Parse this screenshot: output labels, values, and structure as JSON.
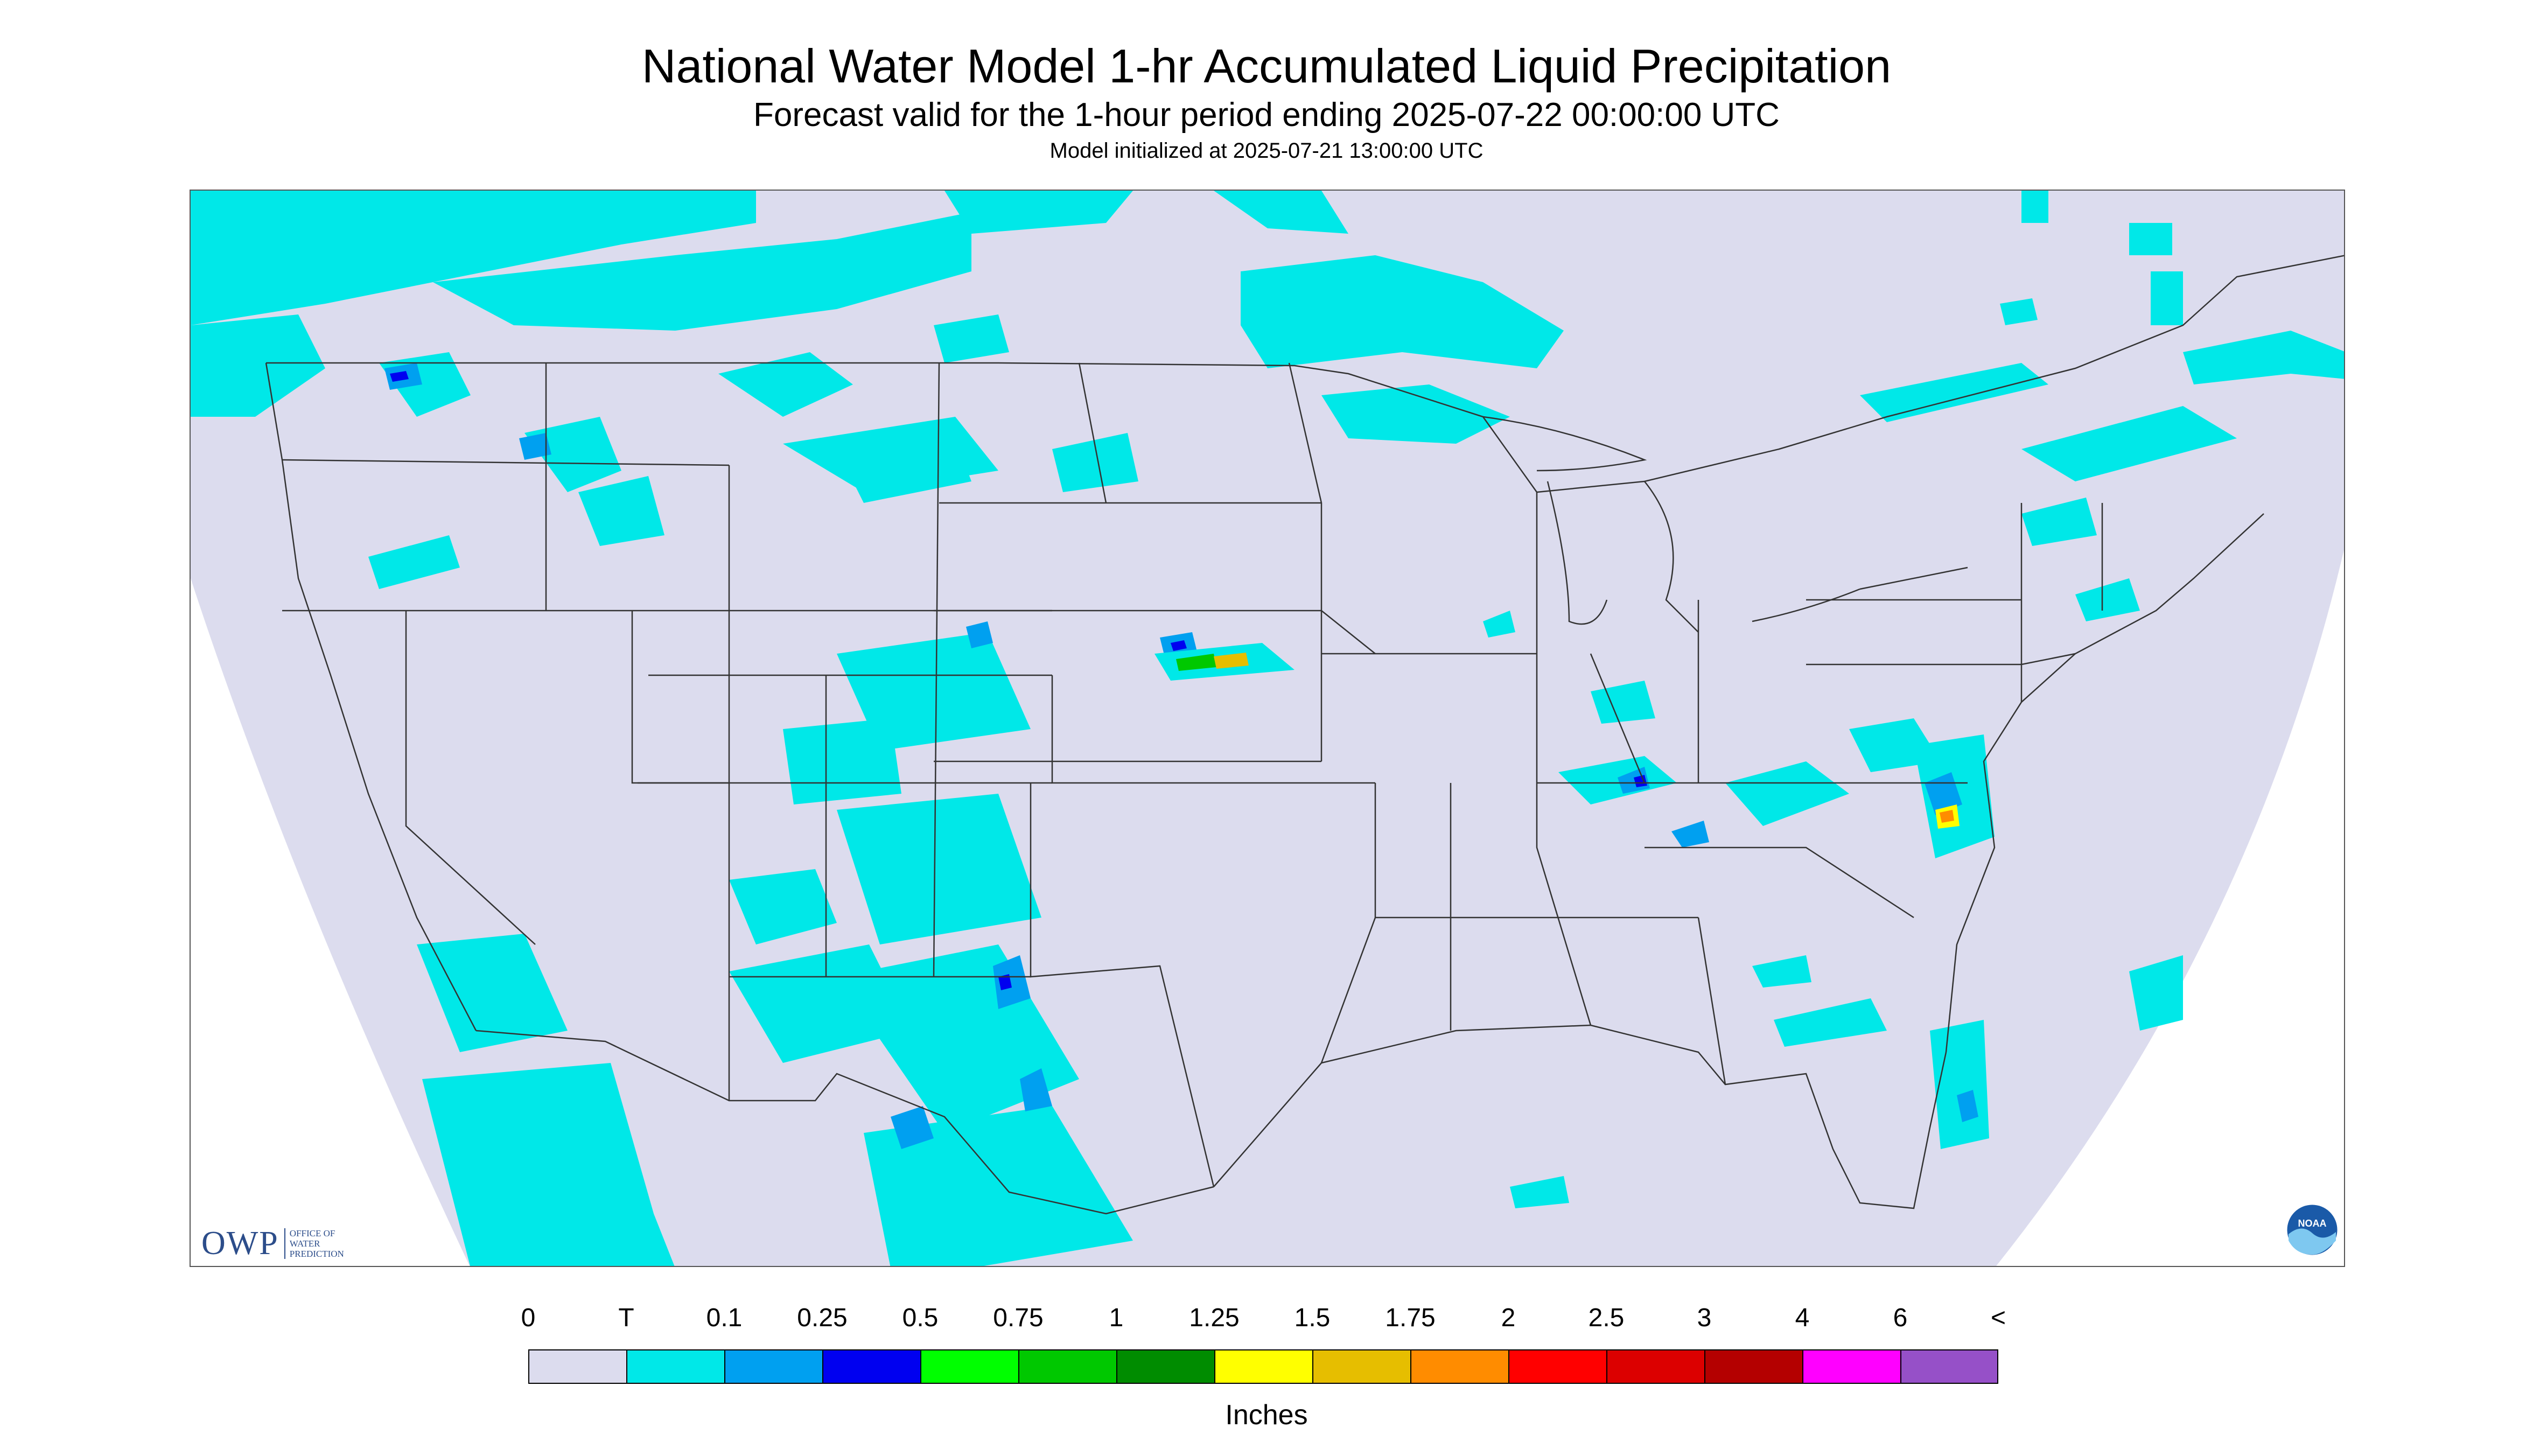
{
  "title": "National Water Model 1-hr Accumulated Liquid Precipitation",
  "subtitle": "Forecast valid for the 1-hour period ending 2025-07-22 00:00:00 UTC",
  "model_init": "Model initialized at 2025-07-21 13:00:00 UTC",
  "colors": {
    "background_domain": "#dcdcee",
    "outside_domain": "#ffffff",
    "state_lines": "#333333"
  },
  "logos": {
    "owp_mark": "OWP",
    "owp_text": "OFFICE OF WATER PREDICTION",
    "noaa_icon": "noaa-logo-icon"
  },
  "legend": {
    "labels": [
      "0",
      "T",
      "0.1",
      "0.25",
      "0.5",
      "0.75",
      "1",
      "1.25",
      "1.5",
      "1.75",
      "2",
      "2.5",
      "3",
      "4",
      "6",
      "<"
    ],
    "colors": [
      "#dcdcee",
      "#00e8e8",
      "#00a0f0",
      "#0000f0",
      "#00ff00",
      "#00c800",
      "#008c00",
      "#ffff00",
      "#e6be00",
      "#ff8c00",
      "#ff0000",
      "#dc0000",
      "#b40000",
      "#ff00ff",
      "#9650c8"
    ],
    "units": "Inches"
  }
}
